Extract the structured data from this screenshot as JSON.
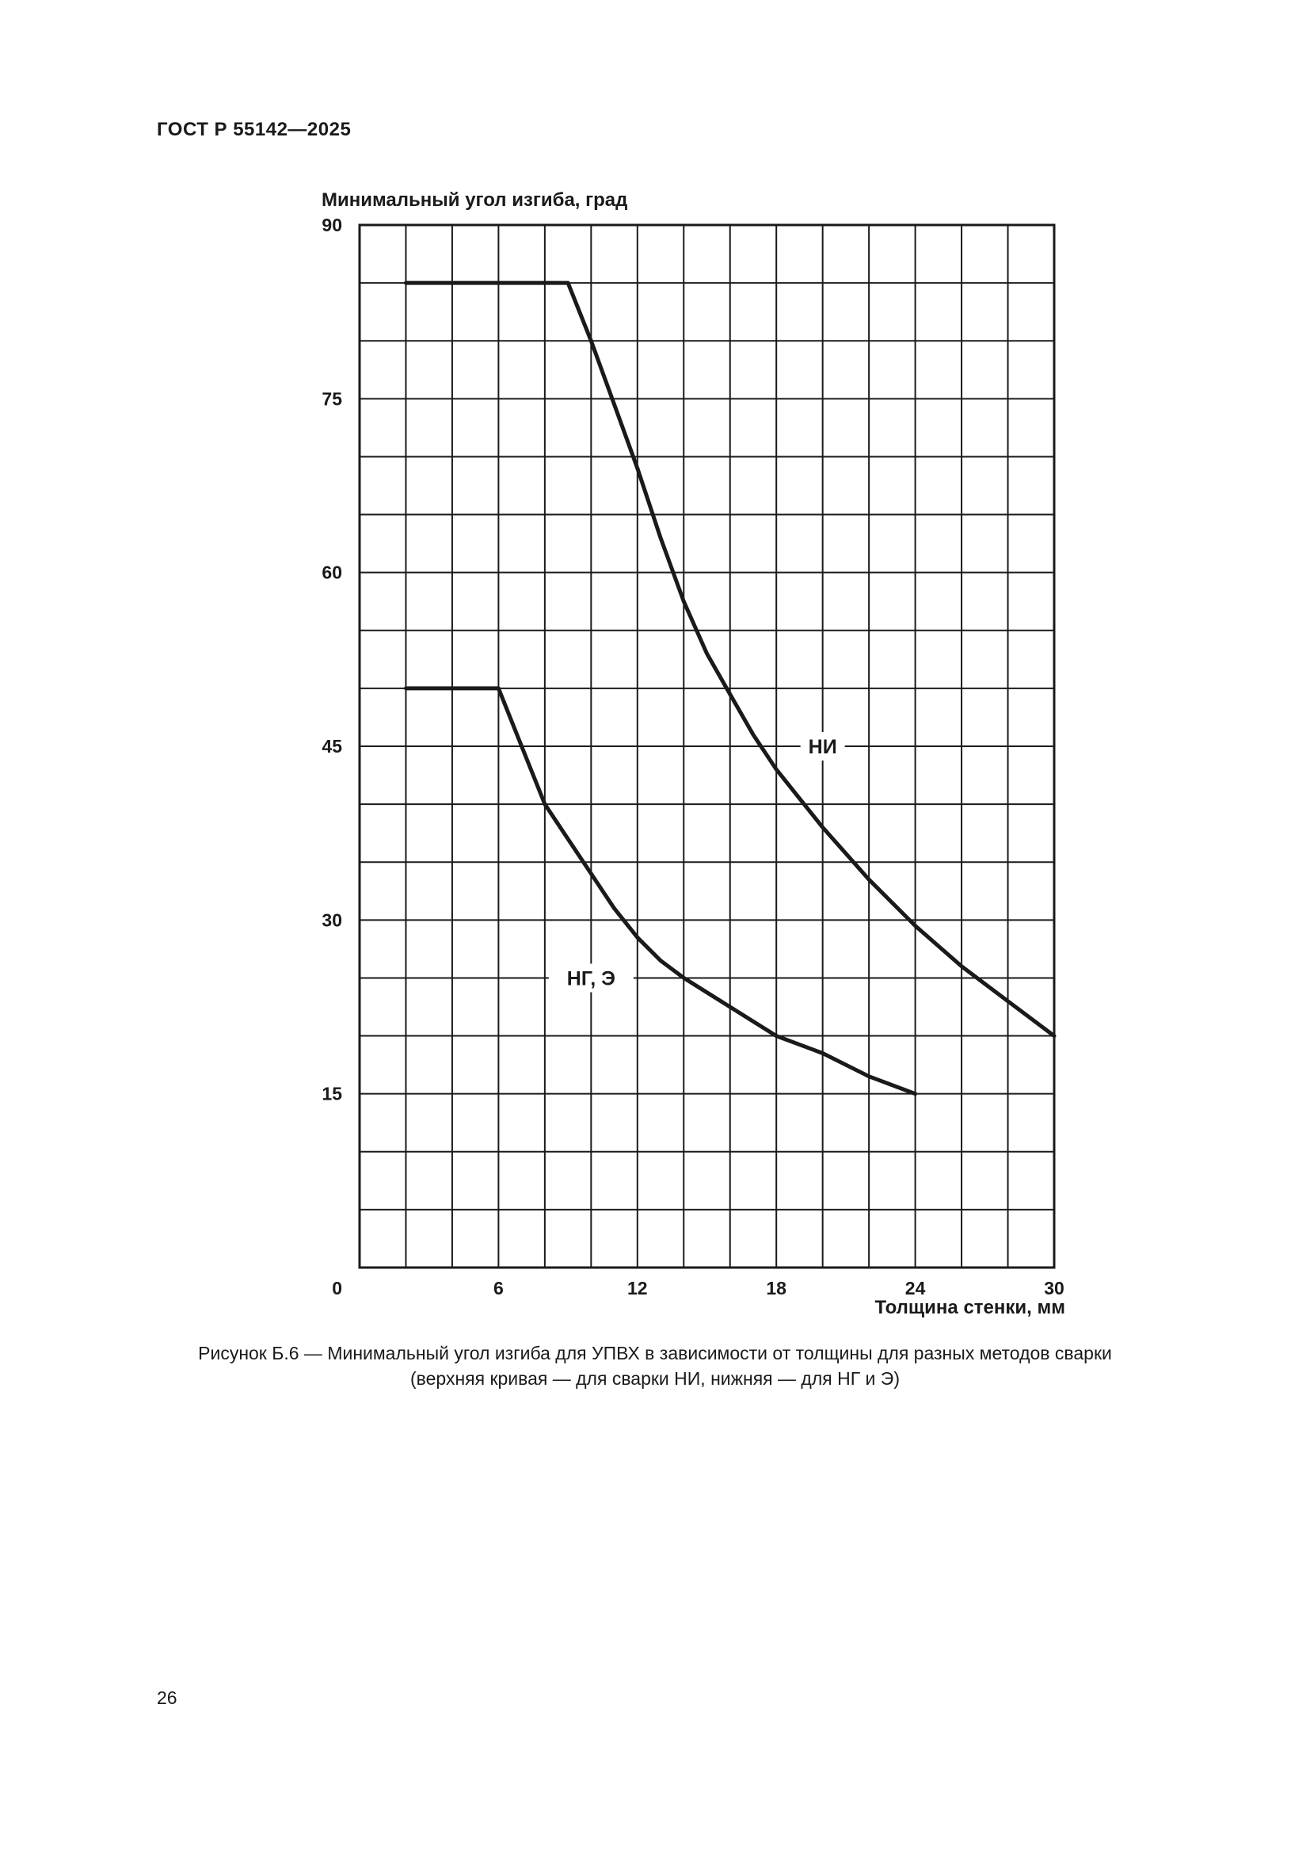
{
  "header": {
    "document_id": "ГОСТ Р 55142—2025"
  },
  "chart_data": {
    "type": "line",
    "ylabel": "Минимальный угол изгиба, град",
    "xlabel": "Толщина стенки, мм",
    "xlim": [
      0,
      30
    ],
    "ylim": [
      0,
      90
    ],
    "x_ticks": [
      {
        "value": 0,
        "label": "0"
      },
      {
        "value": 6,
        "label": "6"
      },
      {
        "value": 12,
        "label": "12"
      },
      {
        "value": 18,
        "label": "18"
      },
      {
        "value": 24,
        "label": "24"
      },
      {
        "value": 30,
        "label": "30"
      }
    ],
    "y_ticks": [
      {
        "value": 15,
        "label": "15"
      },
      {
        "value": 30,
        "label": "30"
      },
      {
        "value": 45,
        "label": "45"
      },
      {
        "value": 60,
        "label": "60"
      },
      {
        "value": 75,
        "label": "75"
      },
      {
        "value": 90,
        "label": "90"
      }
    ],
    "grid": {
      "x_step": 2,
      "y_step": 5
    },
    "series": [
      {
        "name": "НИ",
        "label_at": [
          20,
          45
        ],
        "points": [
          [
            2,
            85
          ],
          [
            9,
            85
          ],
          [
            10,
            80
          ],
          [
            11,
            74.5
          ],
          [
            12,
            69
          ],
          [
            13,
            63
          ],
          [
            14,
            57.5
          ],
          [
            15,
            53
          ],
          [
            16,
            49.5
          ],
          [
            17,
            46
          ],
          [
            18,
            43
          ],
          [
            19,
            40.5
          ],
          [
            20,
            38
          ],
          [
            22,
            33.5
          ],
          [
            24,
            29.5
          ],
          [
            26,
            26
          ],
          [
            28,
            23
          ],
          [
            30,
            20
          ]
        ]
      },
      {
        "name": "НГ, Э",
        "label_at": [
          10,
          25
        ],
        "points": [
          [
            2,
            50
          ],
          [
            6,
            50
          ],
          [
            7,
            45
          ],
          [
            8,
            40
          ],
          [
            9,
            37
          ],
          [
            10,
            34
          ],
          [
            11,
            31
          ],
          [
            12,
            28.5
          ],
          [
            13,
            26.5
          ],
          [
            14,
            25
          ],
          [
            16,
            22.5
          ],
          [
            18,
            20
          ],
          [
            20,
            18.5
          ],
          [
            22,
            16.5
          ],
          [
            24,
            15
          ]
        ]
      }
    ]
  },
  "caption": {
    "line1": "Рисунок Б.6 — Минимальный угол изгиба для УПВХ в зависимости от толщины для разных методов сварки",
    "line2": "(верхняя кривая — для сварки НИ, нижняя — для НГ и Э)"
  },
  "page_number": "26"
}
